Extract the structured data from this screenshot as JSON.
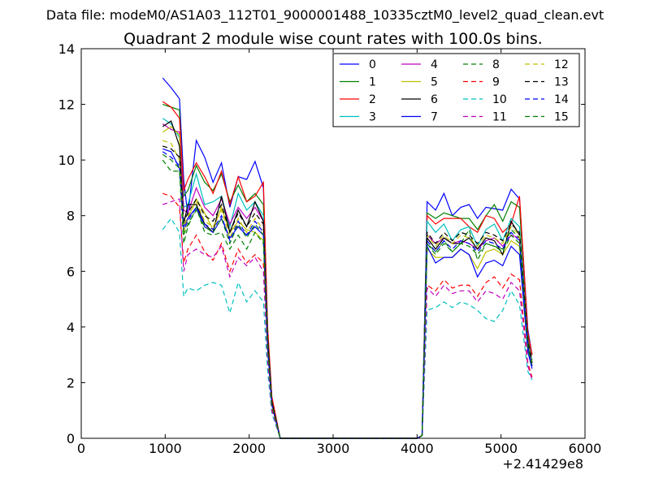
{
  "figure": {
    "suptitle": "Data file: modeM0/AS1A03_112T01_9000001488_10335cztM0_level2_quad_clean.evt"
  },
  "chart_data": {
    "type": "line",
    "title": "Quadrant 2 module wise count rates with 100.0s bins.",
    "xlabel": "",
    "ylabel": "",
    "xlim": [
      0,
      6000
    ],
    "ylim": [
      0,
      14
    ],
    "x_offset_label": "+2.41429e8",
    "x_ticks": [
      0,
      1000,
      2000,
      3000,
      4000,
      5000,
      6000
    ],
    "y_ticks": [
      0,
      2,
      4,
      6,
      8,
      10,
      12,
      14
    ],
    "grid": false,
    "legend_position": "top-right",
    "legend_columns": 4,
    "x": [
      970,
      1070,
      1170,
      1220,
      1270,
      1370,
      1470,
      1570,
      1670,
      1770,
      1870,
      1970,
      2070,
      2170,
      2220,
      2270,
      2370,
      2500,
      3000,
      3500,
      4000,
      4060,
      4120,
      4220,
      4320,
      4420,
      4520,
      4620,
      4720,
      4820,
      4920,
      5020,
      5120,
      5220,
      5320,
      5370
    ],
    "series": [
      {
        "name": "0",
        "color": "#0000ff",
        "dash": false,
        "values": [
          12.95,
          12.6,
          12.2,
          9.3,
          8.0,
          10.7,
          10.1,
          9.2,
          9.9,
          8.3,
          9.4,
          9.3,
          9.95,
          9.0,
          3.8,
          1.4,
          0,
          0,
          0,
          0,
          0,
          0.1,
          8.5,
          8.2,
          8.8,
          8.0,
          8.3,
          8.4,
          7.9,
          8.3,
          8.25,
          8.2,
          8.95,
          8.6,
          3.9,
          3.0
        ]
      },
      {
        "name": "1",
        "color": "#008000",
        "dash": false,
        "values": [
          12.0,
          11.9,
          11.8,
          8.7,
          8.9,
          9.8,
          9.2,
          8.9,
          9.5,
          8.5,
          9.1,
          8.5,
          8.8,
          8.4,
          3.9,
          1.4,
          0,
          0,
          0,
          0,
          0,
          0.1,
          8.1,
          7.9,
          8.1,
          8.0,
          7.9,
          7.9,
          7.5,
          8.0,
          8.4,
          7.8,
          8.5,
          8.3,
          3.7,
          3.0
        ]
      },
      {
        "name": "2",
        "color": "#ff0000",
        "dash": false,
        "values": [
          12.1,
          11.9,
          11.5,
          8.9,
          9.3,
          9.9,
          9.4,
          8.8,
          9.6,
          8.4,
          9.4,
          8.5,
          8.7,
          9.2,
          4.0,
          1.5,
          0,
          0,
          0,
          0,
          0,
          0.1,
          8.0,
          7.7,
          7.9,
          7.9,
          7.9,
          7.6,
          7.4,
          8.0,
          7.9,
          7.4,
          7.7,
          8.7,
          3.8,
          3.0
        ]
      },
      {
        "name": "3",
        "color": "#00bfbf",
        "dash": false,
        "values": [
          11.5,
          11.3,
          10.8,
          8.3,
          8.4,
          9.5,
          8.4,
          8.5,
          8.7,
          7.6,
          8.8,
          8.2,
          8.5,
          8.0,
          3.6,
          1.3,
          0,
          0,
          0,
          0,
          0,
          0.1,
          7.8,
          7.4,
          7.7,
          7.1,
          7.5,
          7.6,
          6.9,
          7.5,
          7.7,
          7.1,
          7.9,
          7.6,
          3.5,
          2.8
        ]
      },
      {
        "name": "4",
        "color": "#bf00bf",
        "dash": false,
        "values": [
          11.3,
          11.1,
          11.0,
          8.2,
          8.1,
          9.0,
          8.3,
          8.0,
          8.6,
          7.7,
          8.3,
          7.9,
          8.3,
          7.8,
          3.5,
          1.3,
          0,
          0,
          0,
          0,
          0,
          0.1,
          7.3,
          7.0,
          7.2,
          7.0,
          7.1,
          7.0,
          6.8,
          7.1,
          7.2,
          6.9,
          7.3,
          7.2,
          3.4,
          2.7
        ]
      },
      {
        "name": "5",
        "color": "#bfbf00",
        "dash": false,
        "values": [
          11.0,
          11.2,
          10.9,
          7.4,
          7.9,
          8.6,
          8.1,
          7.5,
          8.3,
          7.4,
          7.8,
          7.5,
          7.4,
          7.1,
          3.4,
          1.2,
          0,
          0,
          0,
          0,
          0,
          0.1,
          6.8,
          6.5,
          6.5,
          6.5,
          6.8,
          6.6,
          6.1,
          6.7,
          6.8,
          6.6,
          7.1,
          6.9,
          3.2,
          2.6
        ]
      },
      {
        "name": "6",
        "color": "#000000",
        "dash": false,
        "values": [
          11.2,
          11.4,
          10.5,
          7.7,
          8.4,
          8.4,
          7.7,
          7.4,
          8.7,
          7.4,
          8.2,
          7.6,
          8.5,
          7.8,
          3.6,
          1.3,
          0,
          0,
          0,
          0,
          0,
          0.1,
          7.2,
          6.8,
          7.2,
          7.0,
          7.0,
          7.2,
          6.8,
          7.2,
          7.1,
          6.6,
          7.8,
          7.3,
          3.5,
          2.7
        ]
      },
      {
        "name": "7",
        "color": "#0000ff",
        "dash": false,
        "values": [
          10.4,
          10.3,
          9.7,
          7.6,
          7.9,
          8.3,
          7.6,
          7.4,
          7.9,
          7.2,
          7.6,
          7.3,
          7.6,
          7.3,
          3.3,
          1.2,
          0,
          0,
          0,
          0,
          0,
          0.1,
          6.9,
          6.3,
          6.5,
          6.5,
          6.8,
          6.6,
          5.8,
          6.3,
          6.4,
          6.2,
          6.9,
          6.6,
          3.1,
          2.5
        ]
      },
      {
        "name": "8",
        "color": "#008000",
        "dash": true,
        "values": [
          10.0,
          9.6,
          9.6,
          7.0,
          7.6,
          8.3,
          7.4,
          7.3,
          7.4,
          6.8,
          7.3,
          6.8,
          7.4,
          7.0,
          3.2,
          1.2,
          0,
          0,
          0,
          0,
          0,
          0.1,
          7.0,
          6.7,
          7.1,
          6.7,
          7.0,
          7.5,
          6.4,
          7.0,
          6.9,
          6.8,
          7.5,
          7.2,
          3.3,
          2.6
        ]
      },
      {
        "name": "9",
        "color": "#ff0000",
        "dash": true,
        "values": [
          8.8,
          8.7,
          8.3,
          6.3,
          6.8,
          7.3,
          6.7,
          6.4,
          7.0,
          6.0,
          6.8,
          6.3,
          6.6,
          6.3,
          2.9,
          1.1,
          0,
          0,
          0,
          0,
          0,
          0.1,
          5.5,
          5.3,
          5.7,
          5.4,
          5.5,
          5.5,
          5.1,
          5.6,
          5.8,
          5.4,
          5.9,
          5.7,
          2.7,
          2.2
        ]
      },
      {
        "name": "10",
        "color": "#00bfbf",
        "dash": true,
        "values": [
          7.5,
          7.9,
          7.4,
          5.1,
          5.4,
          5.3,
          5.5,
          5.6,
          5.5,
          4.5,
          5.6,
          4.9,
          5.3,
          4.9,
          2.4,
          0.9,
          0,
          0,
          0,
          0,
          0,
          0.1,
          4.6,
          4.7,
          4.9,
          4.7,
          4.9,
          4.8,
          4.6,
          4.3,
          4.2,
          4.6,
          5.3,
          4.8,
          2.4,
          2.1
        ]
      },
      {
        "name": "11",
        "color": "#bf00bf",
        "dash": true,
        "values": [
          8.4,
          8.5,
          8.6,
          6.0,
          6.6,
          6.8,
          6.6,
          6.5,
          6.9,
          5.8,
          6.5,
          6.2,
          6.5,
          6.0,
          2.8,
          1.0,
          0,
          0,
          0,
          0,
          0,
          0.1,
          5.4,
          5.1,
          5.5,
          5.2,
          5.3,
          5.3,
          4.9,
          5.3,
          5.2,
          5.0,
          5.6,
          5.3,
          2.6,
          2.1
        ]
      },
      {
        "name": "12",
        "color": "#bfbf00",
        "dash": true,
        "values": [
          10.7,
          10.6,
          10.0,
          7.6,
          8.0,
          8.5,
          7.8,
          7.6,
          8.2,
          7.2,
          7.9,
          7.4,
          7.9,
          7.5,
          3.4,
          1.2,
          0,
          0,
          0,
          0,
          0,
          0.1,
          7.3,
          6.9,
          7.3,
          7.0,
          7.3,
          7.2,
          6.9,
          7.3,
          7.2,
          7.0,
          7.6,
          7.3,
          3.4,
          2.7
        ]
      },
      {
        "name": "13",
        "color": "#000000",
        "dash": true,
        "values": [
          10.5,
          10.4,
          10.1,
          7.8,
          8.1,
          8.6,
          8.0,
          7.8,
          8.4,
          7.4,
          8.1,
          7.6,
          8.1,
          7.7,
          3.5,
          1.3,
          0,
          0,
          0,
          0,
          0,
          0.1,
          7.4,
          7.0,
          7.4,
          7.1,
          7.4,
          7.3,
          7.0,
          7.4,
          7.3,
          7.1,
          7.7,
          7.4,
          3.5,
          2.8
        ]
      },
      {
        "name": "14",
        "color": "#0000ff",
        "dash": true,
        "values": [
          10.3,
          10.1,
          9.8,
          7.5,
          7.8,
          8.3,
          7.7,
          7.5,
          8.0,
          7.1,
          7.8,
          7.3,
          7.8,
          7.4,
          3.3,
          1.2,
          0,
          0,
          0,
          0,
          0,
          0.1,
          7.1,
          6.7,
          7.1,
          6.8,
          7.1,
          7.0,
          6.7,
          7.1,
          7.0,
          6.8,
          7.4,
          7.1,
          3.3,
          2.6
        ]
      },
      {
        "name": "15",
        "color": "#008000",
        "dash": true,
        "values": [
          10.2,
          10.0,
          9.7,
          7.3,
          7.7,
          8.2,
          7.6,
          7.4,
          7.9,
          7.0,
          7.7,
          7.2,
          7.7,
          7.3,
          3.3,
          1.2,
          0,
          0,
          0,
          0,
          0,
          0.1,
          7.0,
          6.6,
          7.0,
          6.7,
          7.0,
          6.9,
          6.6,
          7.0,
          6.9,
          6.7,
          7.3,
          7.0,
          3.3,
          2.6
        ]
      }
    ]
  }
}
